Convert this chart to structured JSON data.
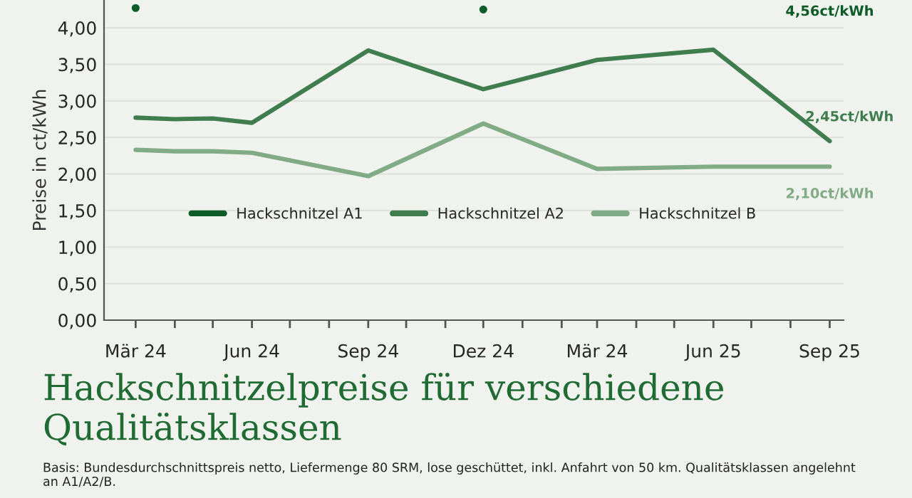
{
  "chart_data": {
    "type": "line",
    "title": "Hackschnitzelpreise für verschiedene Qualitätsklassen",
    "ylabel": "Preise in ct/kWh",
    "x": [
      "2024-03",
      "2024-04",
      "2024-05",
      "2024-06",
      "2024-09",
      "2024-12",
      "2025-03",
      "2025-06",
      "2025-09"
    ],
    "series": [
      {
        "name": "Hackschnitzel A1",
        "color": "#0d5c28",
        "marker": "circle",
        "values": [
          4.27,
          null,
          null,
          null,
          null,
          4.25,
          null,
          null,
          null
        ]
      },
      {
        "name": "Hackschnitzel A2",
        "color": "#3f7d4f",
        "values": [
          2.77,
          2.75,
          2.76,
          2.7,
          3.69,
          3.16,
          3.56,
          3.7,
          2.45
        ],
        "value_labels": [
          null,
          null,
          null,
          null,
          null,
          null,
          null,
          null,
          "2,45ct/kWh"
        ]
      },
      {
        "name": "Hackschnitzel B",
        "color": "#80ab85",
        "values": [
          2.33,
          2.31,
          2.31,
          2.29,
          1.97,
          2.69,
          2.07,
          2.1,
          2.1
        ],
        "value_labels": [
          null,
          null,
          null,
          null,
          null,
          null,
          null,
          null,
          "2,10ct/kWh"
        ]
      }
    ],
    "ylim": [
      0,
      4.38
    ],
    "yticks": [
      {
        "value": 0,
        "label": "0,00"
      },
      {
        "value": 0.5,
        "label": "0,50"
      },
      {
        "value": 1,
        "label": "1,00"
      },
      {
        "value": 1.5,
        "label": "1,50"
      },
      {
        "value": 2,
        "label": "2,00"
      },
      {
        "value": 2.5,
        "label": "2,50"
      },
      {
        "value": 3,
        "label": "3,00"
      },
      {
        "value": 3.5,
        "label": "3,50"
      },
      {
        "value": 4,
        "label": "4,00"
      }
    ],
    "xlim": [
      "2024-02-05",
      "2025-09-12"
    ],
    "xticks": [
      {
        "value": "2024-03",
        "label": "Mär 24"
      },
      {
        "value": "2024-04",
        "label": null
      },
      {
        "value": "2024-05",
        "label": null
      },
      {
        "value": "2024-06",
        "label": "Jun 24"
      },
      {
        "value": "2024-07",
        "label": null
      },
      {
        "value": "2024-08",
        "label": null
      },
      {
        "value": "2024-09",
        "label": "Sep 24"
      },
      {
        "value": "2024-10",
        "label": null
      },
      {
        "value": "2024-11",
        "label": null
      },
      {
        "value": "2024-12",
        "label": "Dez 24"
      },
      {
        "value": "2025-01",
        "label": null
      },
      {
        "value": "2025-02",
        "label": null
      },
      {
        "value": "2025-03",
        "label": "Mär 24"
      },
      {
        "value": "2025-04",
        "label": null
      },
      {
        "value": "2025-05",
        "label": null
      },
      {
        "value": "2025-06",
        "label": "Jun 25"
      },
      {
        "value": "2025-07",
        "label": null
      },
      {
        "value": "2025-08",
        "label": null
      },
      {
        "value": "2025-09",
        "label": "Sep 25"
      }
    ],
    "grid": "y",
    "legend": "center",
    "marker": "none",
    "line_style": "solid",
    "annotations": [
      "4,56ct/kWh",
      "Basis: Bundesdurchschnittspreis netto, Liefermenge 80 SRM, lose geschüttet, inkl. Anfahrt von 50 km. Qualitätsklassen angelehnt an A1/A2/B."
    ]
  }
}
